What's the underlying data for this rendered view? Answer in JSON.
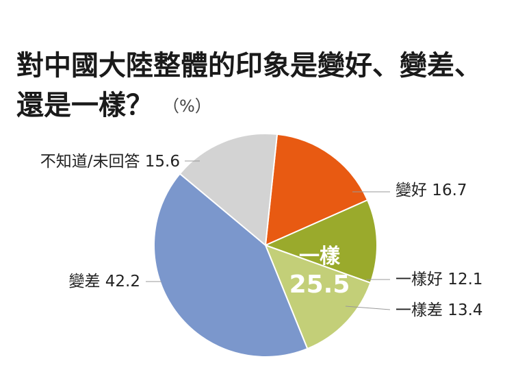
{
  "title_line1": "對中國大陸整體的印象是變好、變差、",
  "title_line2": "還是一樣？",
  "unit": "（%）",
  "chart_data": {
    "type": "pie",
    "title": "對中國大陸整體的印象是變好、變差、還是一樣？",
    "unit": "（%）",
    "slices": [
      {
        "label": "變好",
        "value": 16.7,
        "color": "#e85a12"
      },
      {
        "label": "一樣好",
        "value": 12.1,
        "color": "#9aaa2c"
      },
      {
        "label": "一樣差",
        "value": 13.4,
        "color": "#c3cf78"
      },
      {
        "label": "變差",
        "value": 42.2,
        "color": "#7b97cc"
      },
      {
        "label": "不知道/未回答",
        "value": 15.6,
        "color": "#d3d3d3"
      }
    ],
    "group": {
      "label": "一樣",
      "value": "25.5"
    }
  }
}
